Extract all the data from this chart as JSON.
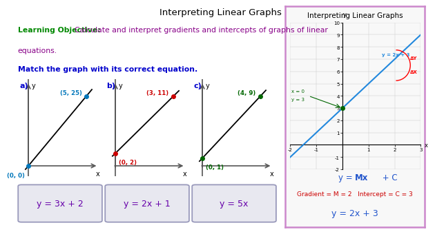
{
  "title": "Interpreting Linear Graphs",
  "bg_color": "#ffffff",
  "lo_label": "Learning Objective: ",
  "lo_text": "Calculate and interpret gradients and intercepts of graphs of linear equations.",
  "match_text": "Match the graph with its correct equation.",
  "graphs": [
    {
      "label": "a)",
      "point1": [
        0,
        0
      ],
      "point2": [
        5,
        25
      ],
      "label1": "(0, 0)",
      "label2": "(5, 25)",
      "pt_color": "#0077bb",
      "lbl_color": "#0077bb"
    },
    {
      "label": "b)",
      "point1": [
        0,
        2
      ],
      "point2": [
        3,
        11
      ],
      "label1": "(0, 2)",
      "label2": "(3, 11)",
      "pt_color": "#cc0000",
      "lbl_color": "#cc0000"
    },
    {
      "label": "c)",
      "point1": [
        0,
        1
      ],
      "point2": [
        4,
        9
      ],
      "label1": "(0, 1)",
      "label2": "(4, 9)",
      "pt_color": "#006600",
      "lbl_color": "#006600"
    }
  ],
  "equations": [
    "y = 3x + 2",
    "y = 2x + 1",
    "y = 5x"
  ],
  "inset_title": "Interpreting Linear Graphs",
  "inset_eq_label": "y = 2x + 3",
  "inset_formula": "y = Mx + C",
  "inset_gradient_text": "Gradient = M = 2   Intercept = C = 3",
  "inset_answer": "y = 2x + 3",
  "inset_border_color": "#cc88cc",
  "inset_bg_color": "#f8f8f8"
}
